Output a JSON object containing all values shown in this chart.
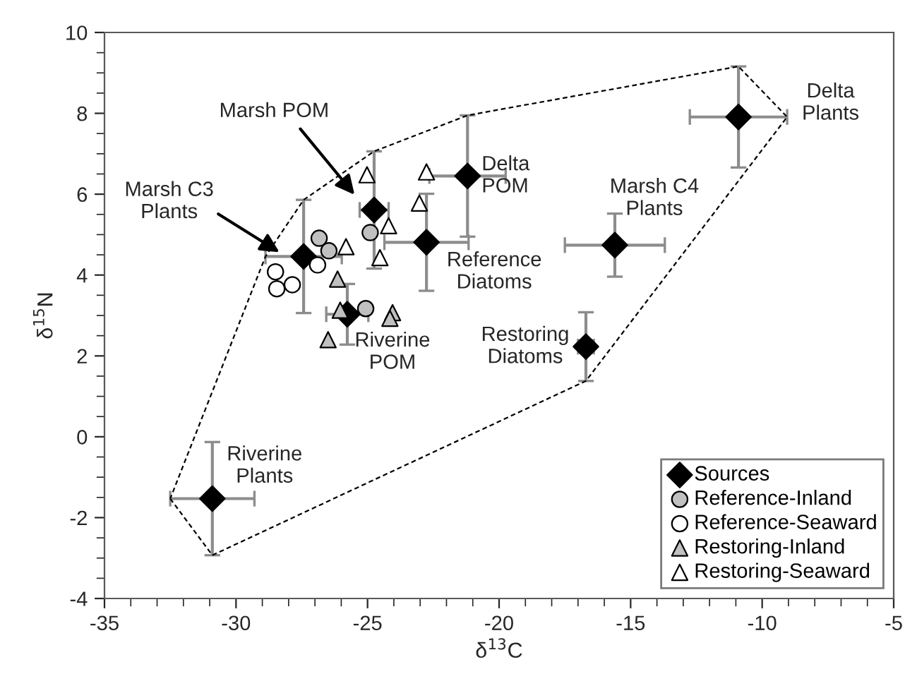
{
  "chart_data": {
    "type": "scatter",
    "xlabel": "δ$^{13}$C",
    "ylabel": "δ$^{15}$N",
    "xlim": [
      -35,
      -5
    ],
    "ylim": [
      -4,
      10
    ],
    "xticks": [
      -35,
      -30,
      -25,
      -20,
      -15,
      -10,
      -5
    ],
    "yticks": [
      -4,
      -2,
      0,
      2,
      4,
      6,
      8,
      10
    ],
    "grid": false,
    "legend": "bottom right",
    "series": [
      {
        "name": "Sources",
        "color": "#000000",
        "marker": "diamond",
        "x": [
          -30.9,
          -27.43,
          -24.75,
          -22.76,
          -21.2,
          -10.9,
          -15.6,
          -16.7,
          -25.77
        ],
        "values": [
          -1.53,
          4.46,
          5.61,
          4.81,
          6.45,
          7.91,
          4.74,
          2.23,
          3.03
        ],
        "errors": [
          1.4,
          1.4,
          1.45,
          1.2,
          1.5,
          1.25,
          0.78,
          0.85,
          0.75
        ],
        "xerrors": [
          1.6,
          1.45,
          0.55,
          1.6,
          1.45,
          1.85,
          1.9,
          0.3,
          0.8
        ]
      },
      {
        "name": "Reference-Inland",
        "color": "#c0c0c0",
        "marker": "circle",
        "x": [
          -26.84,
          -26.47,
          -24.9,
          -25.07
        ],
        "values": [
          4.91,
          4.6,
          5.05,
          3.17
        ]
      },
      {
        "name": "Reference-Seaward",
        "color": "#ffffff",
        "marker": "circle",
        "x": [
          -28.5,
          -28.45,
          -27.86,
          -26.9
        ],
        "values": [
          4.08,
          3.66,
          3.76,
          4.25
        ]
      },
      {
        "name": "Restoring-Inland",
        "color": "#c0c0c0",
        "marker": "triangle",
        "x": [
          -26.14,
          -26.04,
          -24.05,
          -24.15,
          -26.5
        ],
        "values": [
          3.9,
          3.13,
          3.07,
          2.93,
          2.4
        ]
      },
      {
        "name": "Restoring-Seaward",
        "color": "#ffffff",
        "marker": "triangle",
        "x": [
          -25.02,
          -25.82,
          -24.2,
          -24.53,
          -22.76,
          -23.03
        ],
        "values": [
          6.48,
          4.7,
          5.22,
          4.43,
          6.55,
          5.78
        ]
      }
    ],
    "annotations": [
      "Marsh POM",
      "Marsh C3\nPlants",
      {
        "text": "Delta\nPOM",
        "x": -21.2,
        "y": 6.45
      },
      {
        "text": "Reference\nDiatoms",
        "x": -22.76,
        "y": 4.81
      },
      {
        "text": "Marsh C4\nPlants",
        "x": -15.6,
        "y": 4.74
      },
      "Delta\nPlants",
      {
        "text": "Restoring\nDiatoms",
        "x": -16.7,
        "y": 2.23
      },
      {
        "text": "Riverine\nPOM",
        "x": -25.77,
        "y": 3.03
      },
      {
        "text": "Riverine\nPlants",
        "x": -30.9,
        "y": -1.53
      }
    ]
  }
}
